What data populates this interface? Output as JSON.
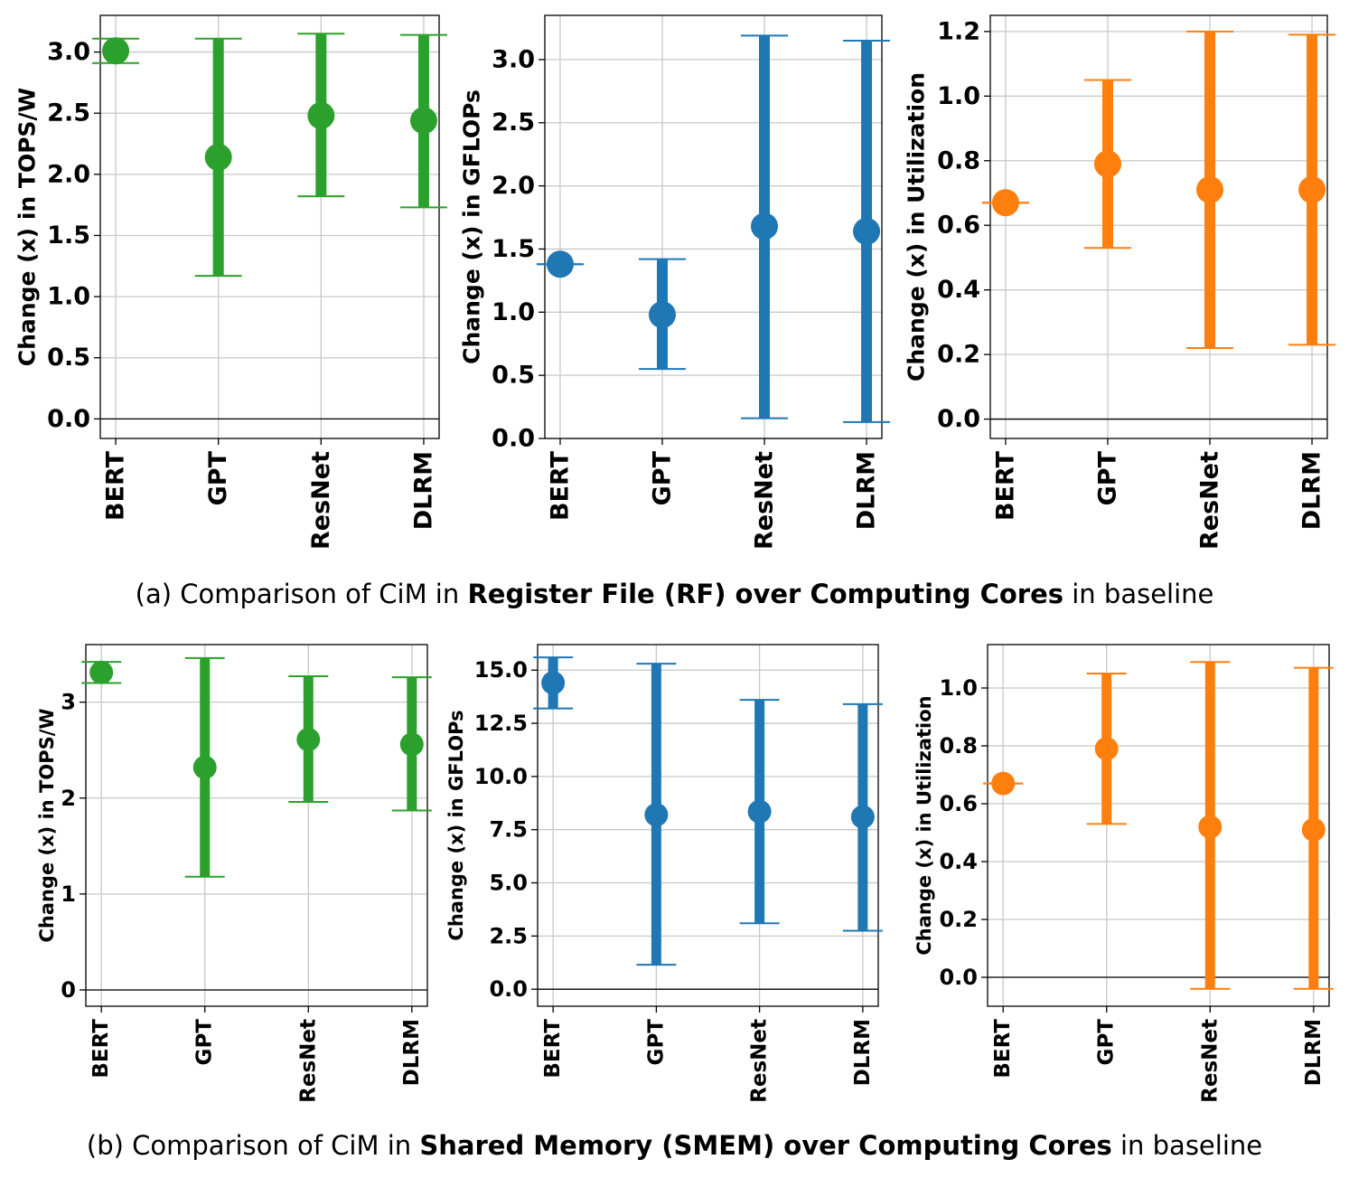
{
  "colors": {
    "green": "#2ca02c",
    "blue": "#1f77b4",
    "orange": "#ff7f0e",
    "grid": "#c8c8c8"
  },
  "captions": [
    {
      "prefix": "(a) Comparison of CiM in ",
      "bold": "Register File (RF) over Computing Cores",
      "suffix": " in baseline"
    },
    {
      "prefix": "(b) Comparison of CiM in ",
      "bold": "Shared Memory (SMEM) over Computing Cores",
      "suffix": " in baseline"
    }
  ],
  "chart_data": [
    {
      "type": "scatter",
      "error_bars": true,
      "color": "green",
      "grid": true,
      "categories": [
        "BERT",
        "GPT",
        "ResNet",
        "DLRM"
      ],
      "ylabel": "Change (x) in TOPS/W",
      "ylim": [
        -0.16,
        3.3
      ],
      "yticks": [
        0.0,
        0.5,
        1.0,
        1.5,
        2.0,
        2.5,
        3.0
      ],
      "ytick_labels": [
        "0.0",
        "0.5",
        "1.0",
        "1.5",
        "2.0",
        "2.5",
        "3.0"
      ],
      "values": [
        3.01,
        2.14,
        2.48,
        2.44
      ],
      "lower": [
        2.91,
        1.17,
        1.82,
        1.73
      ],
      "upper": [
        3.11,
        3.11,
        3.15,
        3.14
      ]
    },
    {
      "type": "scatter",
      "error_bars": true,
      "color": "blue",
      "grid": true,
      "categories": [
        "BERT",
        "GPT",
        "ResNet",
        "DLRM"
      ],
      "ylabel": "Change (x) in GFLOPs",
      "ylim": [
        0.0,
        3.35
      ],
      "yticks": [
        0.0,
        0.5,
        1.0,
        1.5,
        2.0,
        2.5,
        3.0
      ],
      "ytick_labels": [
        "0.0",
        "0.5",
        "1.0",
        "1.5",
        "2.0",
        "2.5",
        "3.0"
      ],
      "values": [
        1.38,
        0.98,
        1.68,
        1.64
      ],
      "lower": [
        1.38,
        0.55,
        0.16,
        0.13
      ],
      "upper": [
        1.38,
        1.42,
        3.19,
        3.15
      ]
    },
    {
      "type": "scatter",
      "error_bars": true,
      "color": "orange",
      "grid": true,
      "categories": [
        "BERT",
        "GPT",
        "ResNet",
        "DLRM"
      ],
      "ylabel": "Change (x) in Utilization",
      "ylim": [
        -0.06,
        1.25
      ],
      "yticks": [
        0.0,
        0.2,
        0.4,
        0.6,
        0.8,
        1.0,
        1.2
      ],
      "ytick_labels": [
        "0.0",
        "0.2",
        "0.4",
        "0.6",
        "0.8",
        "1.0",
        "1.2"
      ],
      "values": [
        0.67,
        0.79,
        0.71,
        0.71
      ],
      "lower": [
        0.67,
        0.53,
        0.22,
        0.23
      ],
      "upper": [
        0.67,
        1.05,
        1.2,
        1.19
      ]
    },
    {
      "type": "scatter",
      "error_bars": true,
      "color": "green",
      "grid": true,
      "categories": [
        "BERT",
        "GPT",
        "ResNet",
        "DLRM"
      ],
      "ylabel": "Change (x) in TOPS/W",
      "ylim": [
        -0.17,
        3.6
      ],
      "yticks": [
        0,
        1,
        2,
        3
      ],
      "ytick_labels": [
        "0",
        "1",
        "2",
        "3"
      ],
      "values": [
        3.31,
        2.32,
        2.61,
        2.56
      ],
      "lower": [
        3.2,
        1.18,
        1.96,
        1.87
      ],
      "upper": [
        3.42,
        3.46,
        3.27,
        3.26
      ]
    },
    {
      "type": "scatter",
      "error_bars": true,
      "color": "blue",
      "grid": true,
      "categories": [
        "BERT",
        "GPT",
        "ResNet",
        "DLRM"
      ],
      "ylabel": "Change (x) in GFLOPs",
      "ylim": [
        -0.8,
        16.2
      ],
      "yticks": [
        0.0,
        2.5,
        5.0,
        7.5,
        10.0,
        12.5,
        15.0
      ],
      "ytick_labels": [
        "0.0",
        "2.5",
        "5.0",
        "7.5",
        "10.0",
        "12.5",
        "15.0"
      ],
      "values": [
        14.4,
        8.2,
        8.35,
        8.1
      ],
      "lower": [
        13.2,
        1.15,
        3.1,
        2.75
      ],
      "upper": [
        15.6,
        15.3,
        13.6,
        13.4
      ]
    },
    {
      "type": "scatter",
      "error_bars": true,
      "color": "orange",
      "grid": true,
      "categories": [
        "BERT",
        "GPT",
        "ResNet",
        "DLRM"
      ],
      "ylabel": "Change (x) in Utilization",
      "ylim": [
        -0.1,
        1.15
      ],
      "yticks": [
        0.0,
        0.2,
        0.4,
        0.6,
        0.8,
        1.0
      ],
      "ytick_labels": [
        "0.0",
        "0.2",
        "0.4",
        "0.6",
        "0.8",
        "1.0"
      ],
      "values": [
        0.67,
        0.79,
        0.52,
        0.51
      ],
      "lower": [
        0.67,
        0.53,
        -0.04,
        -0.04
      ],
      "upper": [
        0.67,
        1.05,
        1.09,
        1.07
      ]
    }
  ]
}
